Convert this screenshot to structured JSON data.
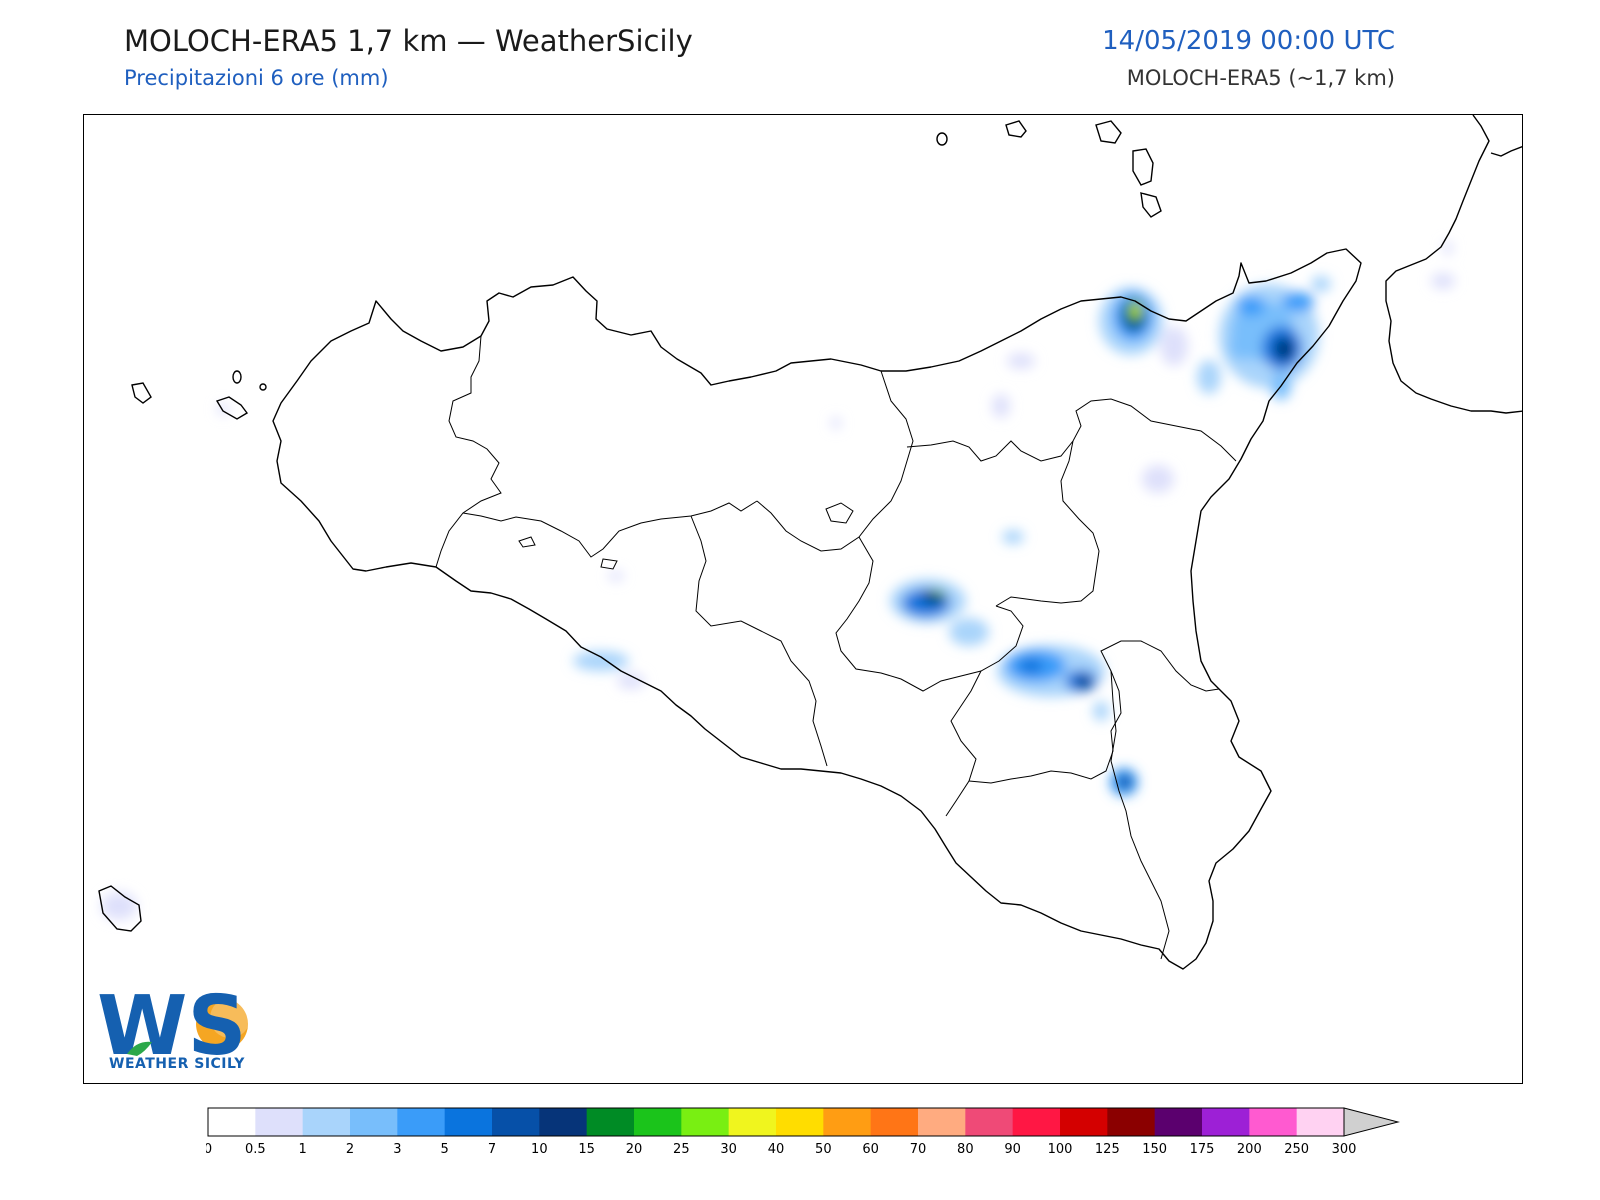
{
  "header": {
    "title": "MOLOCH-ERA5 1,7 km — WeatherSicily",
    "subtitle": "Precipitazioni 6 ore (mm)",
    "datetime": "14/05/2019 00:00 UTC",
    "model": "MOLOCH-ERA5 (~1,7 km)"
  },
  "logo": {
    "letters": "WS",
    "name": "WEATHER SICILY",
    "primary_color": "#1560b0",
    "accent_color": "#f5a623"
  },
  "legend": {
    "ticks": [
      "0",
      "0.5",
      "1",
      "2",
      "3",
      "5",
      "7",
      "10",
      "15",
      "20",
      "25",
      "30",
      "40",
      "50",
      "60",
      "70",
      "80",
      "90",
      "100",
      "125",
      "150",
      "175",
      "200",
      "250",
      "300"
    ],
    "colors": [
      "#ffffff",
      "#dee0fb",
      "#a9d4fb",
      "#78befb",
      "#3a9cf9",
      "#0a74de",
      "#0650a8",
      "#063479",
      "#008b25",
      "#1bc41b",
      "#79ef12",
      "#f0f51e",
      "#ffdd00",
      "#ff9d13",
      "#ff7516",
      "#ffab80",
      "#ef4a77",
      "#ff1744",
      "#d40000",
      "#8b0000",
      "#5b006e",
      "#9d20d6",
      "#ff5ad0",
      "#ffd2f2"
    ],
    "extend_color": "#d0d0d0"
  },
  "precip_blobs": [
    {
      "x": 1134,
      "y": 314,
      "peak_mm": 40
    },
    {
      "x": 1281,
      "y": 347,
      "peak_mm": 10
    },
    {
      "x": 1252,
      "y": 332,
      "peak_mm": 5
    },
    {
      "x": 1298,
      "y": 300,
      "peak_mm": 5
    },
    {
      "x": 933,
      "y": 597,
      "peak_mm": 15
    },
    {
      "x": 1033,
      "y": 665,
      "peak_mm": 7
    },
    {
      "x": 1082,
      "y": 680,
      "peak_mm": 10
    },
    {
      "x": 1124,
      "y": 781,
      "peak_mm": 7
    },
    {
      "x": 968,
      "y": 631,
      "peak_mm": 2
    },
    {
      "x": 1208,
      "y": 376,
      "peak_mm": 2
    },
    {
      "x": 1158,
      "y": 478,
      "peak_mm": 0.5
    }
  ]
}
